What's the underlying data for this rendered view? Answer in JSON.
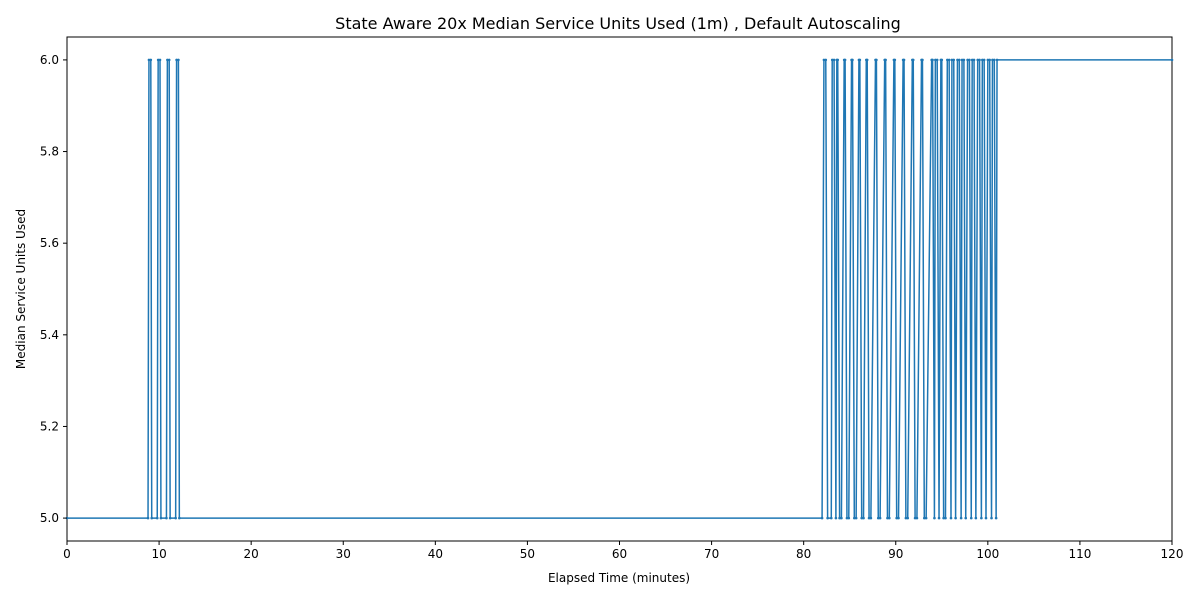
{
  "chart_data": {
    "type": "line",
    "title": "State Aware 20x Median Service Units Used (1m) , Default Autoscaling",
    "xlabel": "Elapsed Time (minutes)",
    "ylabel": "Median Service Units Used",
    "xlim": [
      0,
      120
    ],
    "ylim": [
      4.95,
      6.05
    ],
    "x_ticks": [
      0,
      10,
      20,
      30,
      40,
      50,
      60,
      70,
      80,
      90,
      100,
      110,
      120
    ],
    "y_ticks": [
      5.0,
      5.2,
      5.4,
      5.6,
      5.8,
      6.0
    ],
    "x_tick_labels": [
      "0",
      "10",
      "20",
      "30",
      "40",
      "50",
      "60",
      "70",
      "80",
      "90",
      "100",
      "110",
      "120"
    ],
    "y_tick_labels": [
      "5.0",
      "5.2",
      "5.4",
      "5.6",
      "5.8",
      "6.0"
    ],
    "grid": false,
    "series_color": "#1f77b4",
    "series": [
      {
        "x": [
          0,
          8.8,
          8.9,
          9.1,
          9.2,
          9.8,
          9.9,
          10.1,
          10.2,
          10.8,
          10.9,
          11.1,
          11.2,
          11.8,
          11.9,
          12.1,
          12.2,
          82.0,
          82.2,
          82.4,
          82.6,
          83.0,
          83.1,
          83.3,
          83.5,
          83.6,
          83.7,
          83.9,
          84.1,
          84.4,
          84.5,
          84.7,
          84.9,
          85.2,
          85.3,
          85.5,
          85.7,
          86.0,
          86.1,
          86.3,
          86.5,
          86.8,
          86.9,
          87.1,
          87.3,
          87.8,
          87.9,
          88.1,
          88.3,
          88.8,
          88.9,
          89.1,
          89.3,
          89.8,
          89.9,
          90.1,
          90.3,
          90.8,
          90.9,
          91.1,
          91.3,
          91.8,
          91.9,
          92.1,
          92.3,
          92.8,
          92.9,
          93.1,
          93.3,
          93.9,
          94.0,
          94.2,
          94.3,
          94.5,
          94.7,
          94.9,
          95.0,
          95.2,
          95.4,
          95.6,
          95.8,
          96.0,
          96.1,
          96.3,
          96.5,
          96.7,
          96.9,
          97.1,
          97.2,
          97.4,
          97.6,
          97.8,
          98.0,
          98.2,
          98.3,
          98.5,
          98.7,
          98.9,
          99.1,
          99.3,
          99.4,
          99.6,
          99.8,
          100.0,
          100.2,
          100.4,
          100.5,
          100.7,
          100.9,
          101.0,
          120.0
        ],
        "y": [
          5,
          5,
          6,
          6,
          5,
          5,
          6,
          6,
          5,
          5,
          6,
          6,
          5,
          5,
          6,
          6,
          5,
          5,
          6,
          6,
          5,
          5,
          6,
          6,
          5,
          6,
          6,
          5,
          5,
          6,
          6,
          5,
          5,
          6,
          6,
          5,
          5,
          6,
          6,
          5,
          5,
          6,
          6,
          5,
          5,
          6,
          6,
          5,
          5,
          6,
          6,
          5,
          5,
          6,
          6,
          5,
          5,
          6,
          6,
          5,
          5,
          6,
          6,
          5,
          5,
          6,
          6,
          5,
          5,
          6,
          6,
          5,
          6,
          6,
          5,
          6,
          6,
          5,
          5,
          6,
          6,
          5,
          6,
          6,
          5,
          6,
          6,
          5,
          6,
          6,
          5,
          6,
          6,
          5,
          6,
          6,
          5,
          6,
          6,
          5,
          6,
          6,
          5,
          6,
          6,
          5,
          6,
          6,
          5,
          6,
          6
        ]
      }
    ]
  }
}
